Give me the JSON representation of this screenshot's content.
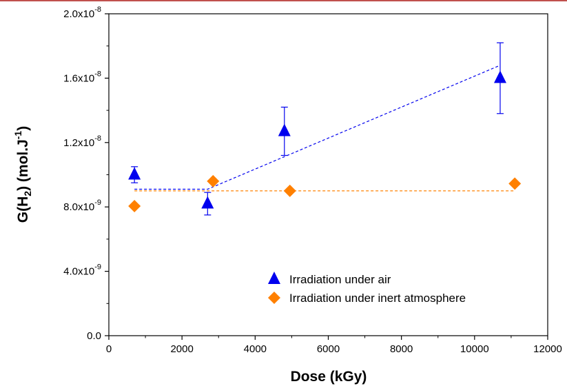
{
  "chart_data": {
    "type": "scatter",
    "title": "",
    "xlabel": "Dose (kGy)",
    "ylabel": "G(H2) (mol.J-1)",
    "xlim": [
      0,
      12000
    ],
    "ylim": [
      0,
      2e-08
    ],
    "x_ticks": [
      0,
      2000,
      4000,
      6000,
      8000,
      10000,
      12000
    ],
    "x_tick_labels": [
      "0",
      "2000",
      "4000",
      "6000",
      "8000",
      "10000",
      "12000"
    ],
    "y_ticks": [
      0,
      4e-09,
      8e-09,
      1.2e-08,
      1.6e-08,
      2e-08
    ],
    "y_tick_labels": [
      {
        "mantissa": "0.0",
        "exponent": ""
      },
      {
        "mantissa": "4.0x10",
        "exponent": "-9"
      },
      {
        "mantissa": "8.0x10",
        "exponent": "-9"
      },
      {
        "mantissa": "1.2x10",
        "exponent": "-8"
      },
      {
        "mantissa": "1.6x10",
        "exponent": "-8"
      },
      {
        "mantissa": "2.0x10",
        "exponent": "-8"
      }
    ],
    "grid": false,
    "legend_position": "bottom-right",
    "series": [
      {
        "name": "Irradiation under air",
        "marker": "triangle",
        "color": "#0000ee",
        "points": [
          {
            "x": 700,
            "y": 1e-08,
            "err": 5e-10
          },
          {
            "x": 2700,
            "y": 8.2e-09,
            "err": 7e-10
          },
          {
            "x": 4800,
            "y": 1.27e-08,
            "err": 1.5e-09
          },
          {
            "x": 10700,
            "y": 1.6e-08,
            "err": 2.2e-09
          }
        ],
        "trend": [
          [
            700,
            9.1e-09
          ],
          [
            2700,
            9.1e-09
          ],
          [
            10700,
            1.68e-08
          ]
        ]
      },
      {
        "name": "Irradiation under inert atmosphere",
        "marker": "diamond",
        "color": "#ff8000",
        "points": [
          {
            "x": 700,
            "y": 8.05e-09
          },
          {
            "x": 2850,
            "y": 9.6e-09
          },
          {
            "x": 4950,
            "y": 9e-09
          },
          {
            "x": 11100,
            "y": 9.45e-09
          }
        ],
        "trend": [
          [
            700,
            9e-09
          ],
          [
            11100,
            9e-09
          ]
        ]
      }
    ]
  }
}
